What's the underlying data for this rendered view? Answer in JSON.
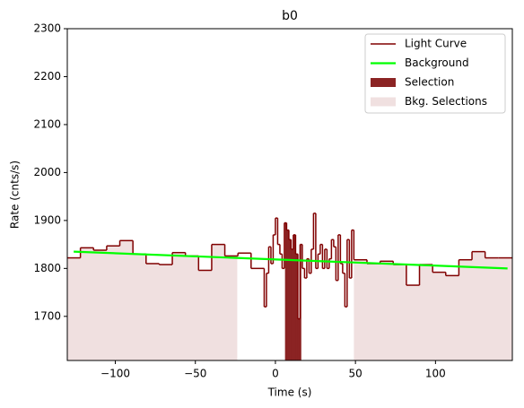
{
  "chart_data": {
    "type": "histogram",
    "title": "b0",
    "x_label": "Time (s)",
    "y_label": "Rate (cnts/s)",
    "bins": [
      -130,
      -121.8,
      -113.6,
      -105.4,
      -97.2,
      -89,
      -80.8,
      -72.6,
      -64.4,
      -56.2,
      -48,
      -39.8,
      -31.6,
      -23.4,
      -15.2,
      -7,
      -5.6,
      -4.2,
      -2.8,
      -1.4,
      0,
      1.4,
      2.8,
      4.2,
      5.6,
      7,
      8.4,
      9.8,
      11.2,
      12.6,
      14,
      15.4,
      16.8,
      18.2,
      19.6,
      21,
      22.4,
      23.8,
      25.2,
      26.6,
      28,
      29.4,
      30.8,
      32.2,
      33.6,
      35,
      36.4,
      37.8,
      39.2,
      40.6,
      42,
      43.4,
      44.8,
      46.2,
      47.6,
      49,
      57.2,
      65.4,
      73.6,
      81.8,
      90,
      98.2,
      106.4,
      114.6,
      122.8,
      131,
      139.2,
      148
    ],
    "series": [
      {
        "name": "Light Curve",
        "color": "#800000",
        "values": [
          1822,
          1843,
          1838,
          1847,
          1858,
          1830,
          1810,
          1808,
          1833,
          1826,
          1796,
          1850,
          1826,
          1832,
          1800,
          1720,
          1790,
          1845,
          1810,
          1870,
          1905,
          1850,
          1830,
          1800,
          1895,
          1880,
          1860,
          1840,
          1870,
          1830,
          1695,
          1850,
          1800,
          1780,
          1820,
          1790,
          1840,
          1915,
          1800,
          1830,
          1850,
          1800,
          1840,
          1800,
          1820,
          1860,
          1845,
          1775,
          1870,
          1810,
          1790,
          1720,
          1860,
          1780,
          1880,
          1818,
          1810,
          1815,
          1808,
          1765,
          1808,
          1792,
          1785,
          1818,
          1835,
          1822,
          1822
        ]
      }
    ],
    "background": {
      "name": "Background",
      "color": "#00ff00",
      "x": [
        -126,
        145
      ],
      "values": [
        1835,
        1800
      ]
    },
    "selection": {
      "name": "Selection",
      "color": "#8b2323",
      "range": [
        6,
        16
      ]
    },
    "bkg_selections": {
      "name": "Bkg. Selections",
      "color": "#f0e0e0",
      "ranges": [
        [
          -130,
          -24
        ],
        [
          49,
          148
        ]
      ]
    },
    "xlim": [
      -130,
      148
    ],
    "ylim": [
      1608,
      2300
    ],
    "xticks": [
      {
        "value": -100,
        "label": "−100"
      },
      {
        "value": -50,
        "label": "−50"
      },
      0,
      50,
      100
    ],
    "yticks": [
      1700,
      1800,
      1900,
      2000,
      2100,
      2200,
      2300
    ],
    "legend": "upper right"
  }
}
